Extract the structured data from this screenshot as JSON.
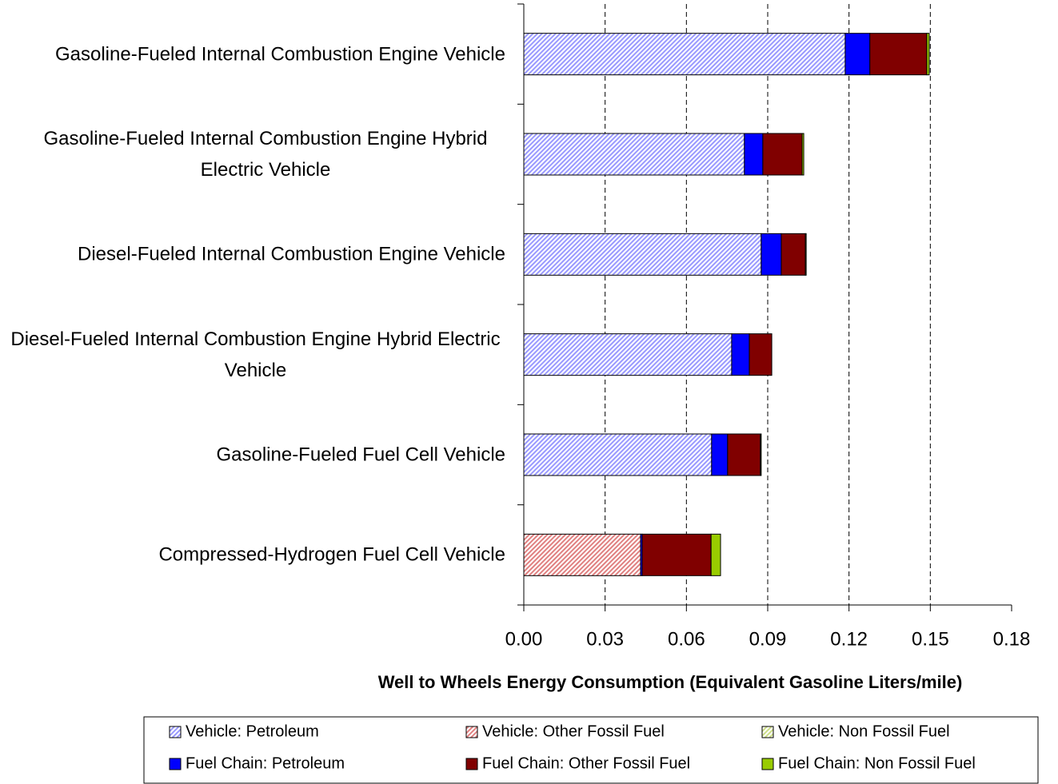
{
  "chart_data": {
    "type": "stacked-barh",
    "xlabel": "Well to Wheels Energy Consumption (Equivalent Gasoline Liters/mile)",
    "categories": [
      "Gasoline-Fueled Internal Combustion Engine Vehicle",
      "Gasoline-Fueled Internal Combustion Engine Hybrid Electric Vehicle",
      "Diesel-Fueled Internal Combustion Engine Vehicle",
      "Diesel-Fueled Internal Combustion Engine Hybrid Electric Vehicle",
      "Gasoline-Fueled Fuel Cell Vehicle",
      "Compressed-Hydrogen Fuel Cell Vehicle"
    ],
    "series": [
      {
        "name": "Vehicle: Petroleum",
        "color": "#9999ff",
        "hatched": true,
        "values": [
          0.1186,
          0.0814,
          0.0876,
          0.0767,
          0.0693,
          0
        ]
      },
      {
        "name": "Vehicle: Other Fossil Fuel",
        "color": "#e08080",
        "hatched": true,
        "values": [
          0,
          0,
          0,
          0,
          0,
          0.0431
        ]
      },
      {
        "name": "Vehicle: Non Fossil Fuel",
        "color": "#ccdd88",
        "hatched": true,
        "values": [
          0,
          0,
          0,
          0,
          0,
          0
        ]
      },
      {
        "name": "Fuel Chain: Petroleum",
        "color": "#0000ff",
        "hatched": false,
        "values": [
          0.0091,
          0.0068,
          0.0074,
          0.0065,
          0.0059,
          0.0006
        ]
      },
      {
        "name": "Fuel Chain: Other Fossil Fuel",
        "color": "#800000",
        "hatched": false,
        "values": [
          0.021,
          0.0145,
          0.0089,
          0.0083,
          0.0121,
          0.0254
        ]
      },
      {
        "name": "Fuel Chain: Non Fossil Fuel",
        "color": "#99cc00",
        "hatched": false,
        "values": [
          0.0009,
          0.0006,
          0.0003,
          0,
          0.0003,
          0.0035
        ]
      }
    ],
    "xlim": [
      0,
      0.18
    ],
    "xticks": [
      {
        "value": 0,
        "label": "0.00"
      },
      {
        "value": 0.03,
        "label": "0.03"
      },
      {
        "value": 0.06,
        "label": "0.06"
      },
      {
        "value": 0.09,
        "label": "0.09"
      },
      {
        "value": 0.12,
        "label": "0.12"
      },
      {
        "value": 0.15,
        "label": "0.15"
      },
      {
        "value": 0.18,
        "label": "0.18"
      }
    ],
    "grid": true,
    "legend": "bottom"
  }
}
